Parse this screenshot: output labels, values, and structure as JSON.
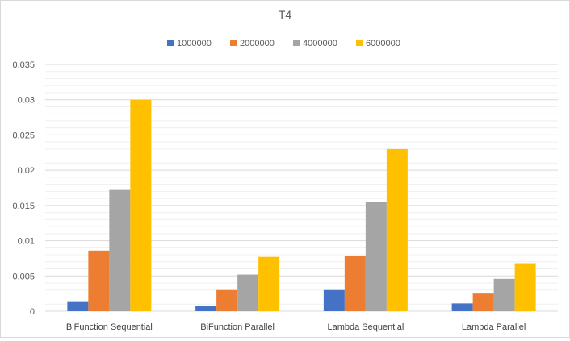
{
  "chart_data": {
    "type": "bar",
    "title": "T4",
    "xlabel": "",
    "ylabel": "",
    "categories": [
      "BiFunction Sequential",
      "BiFunction Parallel",
      "Lambda Sequential",
      "Lambda Parallel"
    ],
    "series": [
      {
        "name": "1000000",
        "color": "#4472c4",
        "values": [
          0.0013,
          0.0008,
          0.003,
          0.0011
        ]
      },
      {
        "name": "2000000",
        "color": "#ed7d31",
        "values": [
          0.0086,
          0.003,
          0.0078,
          0.0025
        ]
      },
      {
        "name": "4000000",
        "color": "#a5a5a5",
        "values": [
          0.0172,
          0.0052,
          0.0155,
          0.0046
        ]
      },
      {
        "name": "6000000",
        "color": "#ffc000",
        "values": [
          0.03,
          0.0077,
          0.023,
          0.0068
        ]
      }
    ],
    "ylim": [
      0,
      0.035
    ],
    "yticks": [
      "0",
      "0.005",
      "0.01",
      "0.015",
      "0.02",
      "0.025",
      "0.03",
      "0.035"
    ],
    "grid": true,
    "legend_position": "top"
  }
}
